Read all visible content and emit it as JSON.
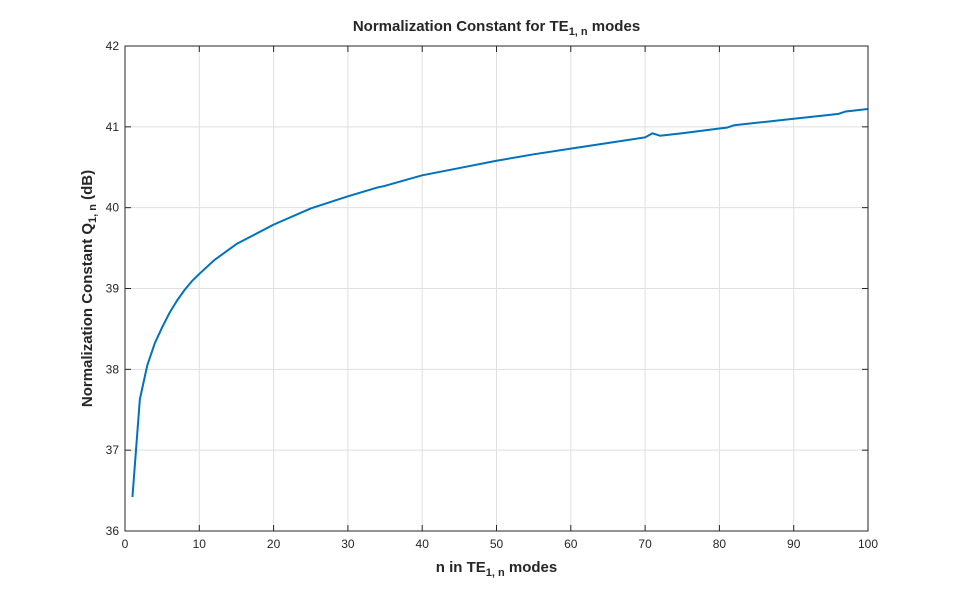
{
  "chart_data": {
    "type": "line",
    "title": {
      "prefix": "Normalization Constant for TE",
      "sub": "1, n",
      "suffix": " modes"
    },
    "xlabel": {
      "prefix": "n in TE",
      "sub": "1, n",
      "suffix": " modes"
    },
    "ylabel": {
      "prefix": "Normalization Constant Q",
      "sub": "1, n",
      "suffix": " (dB)"
    },
    "xlim": [
      0,
      100
    ],
    "ylim": [
      36,
      42
    ],
    "xticks": [
      0,
      10,
      20,
      30,
      40,
      50,
      60,
      70,
      80,
      90,
      100
    ],
    "yticks": [
      36,
      37,
      38,
      39,
      40,
      41,
      42
    ],
    "grid": true,
    "series": [
      {
        "color": "#0072bd",
        "x": [
          1,
          2,
          3,
          4,
          5,
          6,
          7,
          8,
          9,
          10,
          12,
          15,
          20,
          25,
          30,
          34,
          35,
          40,
          45,
          50,
          55,
          60,
          65,
          70,
          71,
          72,
          75,
          80,
          81,
          82,
          85,
          90,
          95,
          96,
          97,
          100
        ],
        "y": [
          36.42,
          37.63,
          38.05,
          38.32,
          38.52,
          38.7,
          38.85,
          38.98,
          39.09,
          39.18,
          39.35,
          39.55,
          39.79,
          39.99,
          40.14,
          40.25,
          40.27,
          40.4,
          40.49,
          40.58,
          40.66,
          40.73,
          40.8,
          40.87,
          40.92,
          40.89,
          40.92,
          40.98,
          40.99,
          41.02,
          41.05,
          41.1,
          41.15,
          41.16,
          41.19,
          41.22
        ]
      }
    ]
  }
}
